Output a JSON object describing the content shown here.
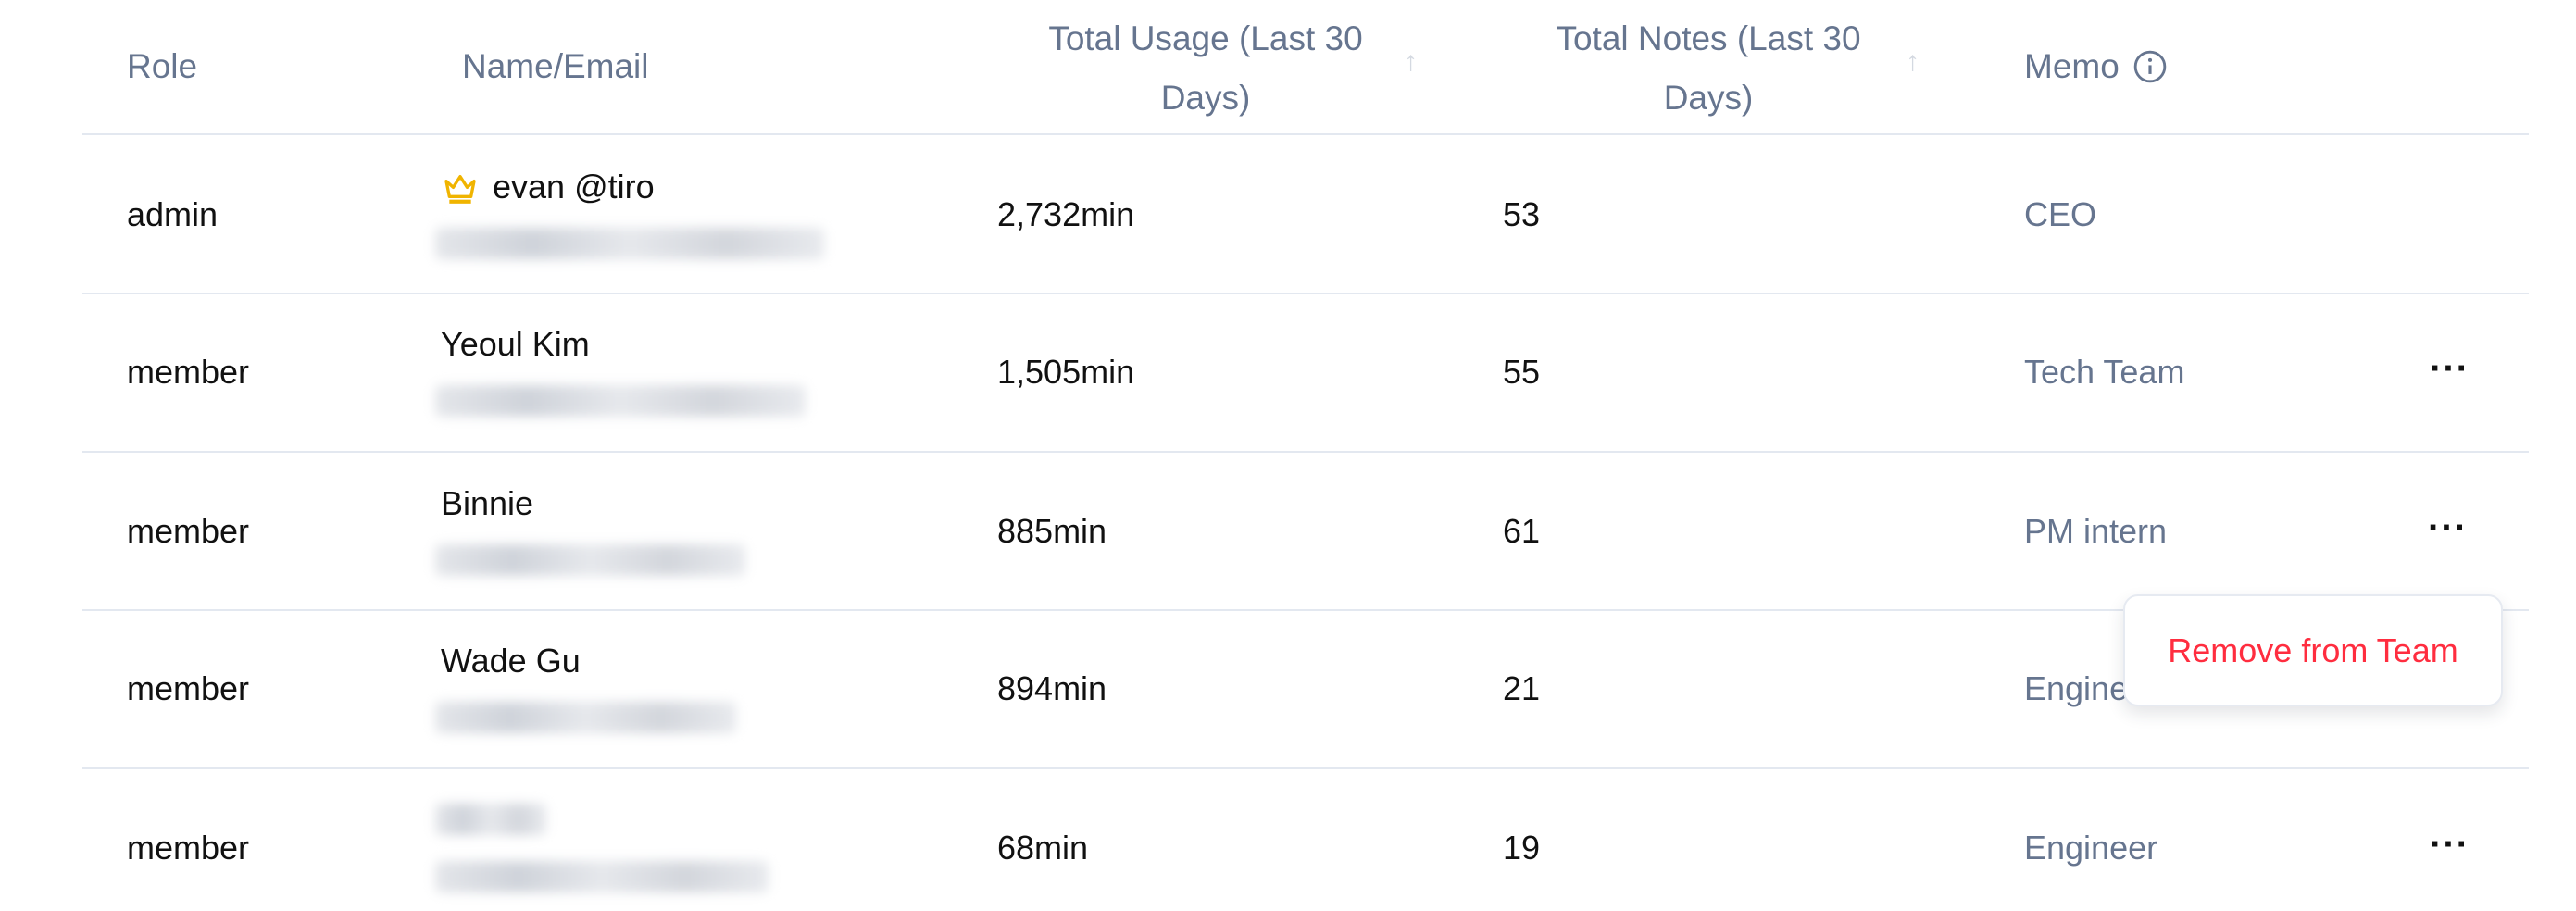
{
  "header": {
    "role": "Role",
    "name_email": "Name/Email",
    "usage_line1": "Total Usage (Last 30",
    "usage_line2": "Days)",
    "notes_line1": "Total Notes (Last 30",
    "notes_line2": "Days)",
    "memo": "Memo",
    "sort_icon": "arrow-up-icon",
    "info_icon": "info-circle-icon"
  },
  "rows": [
    {
      "role": "admin",
      "name": "evan @tiro",
      "owner_icon": "crown-icon",
      "usage": "2,732min",
      "notes": "53",
      "memo": "CEO"
    },
    {
      "role": "member",
      "name": "Yeoul Kim",
      "usage": "1,505min",
      "notes": "55",
      "memo": "Tech Team"
    },
    {
      "role": "member",
      "name": "Binnie",
      "usage": "885min",
      "notes": "61",
      "memo": "PM intern"
    },
    {
      "role": "member",
      "name": "Wade Gu",
      "usage": "894min",
      "notes": "21",
      "memo": "Engineer"
    },
    {
      "role": "member",
      "usage": "68min",
      "notes": "19",
      "memo": "Engineer"
    }
  ],
  "more_icon": "more-horizontal-icon",
  "context_menu": {
    "remove": "Remove from Team"
  },
  "colors": {
    "header_text": "#66758f",
    "danger": "#ff2d3f",
    "crown": "#f0b400"
  }
}
